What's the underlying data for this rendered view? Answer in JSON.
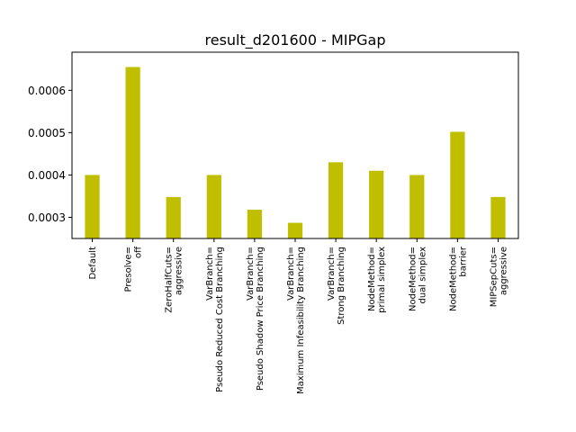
{
  "chart_data": {
    "type": "bar",
    "title": "result_d201600 - MIPGap",
    "xlabel": "",
    "ylabel": "",
    "bar_color": "#bfbf00",
    "ylim": [
      0.00025,
      0.00069
    ],
    "yticks": [
      0.0003,
      0.0004,
      0.0005,
      0.0006
    ],
    "ytick_labels": [
      "0.0003",
      "0.0004",
      "0.0005",
      "0.0006"
    ],
    "grid": false,
    "categories": [
      [
        "Default"
      ],
      [
        "Presolve=",
        "off"
      ],
      [
        "ZeroHalfCuts=",
        "aggressive"
      ],
      [
        "VarBranch=",
        "Pseudo Reduced Cost Branching"
      ],
      [
        "VarBranch=",
        "Pseudo Shadow Price Branching"
      ],
      [
        "VarBranch=",
        "Maximum Infeasibility Branching"
      ],
      [
        "VarBranch=",
        "Strong Branching"
      ],
      [
        "NodeMethod=",
        "primal simplex"
      ],
      [
        "NodeMethod=",
        "dual simplex"
      ],
      [
        "NodeMethod=",
        "barrier"
      ],
      [
        "MIPSepCuts=",
        "aggressive"
      ]
    ],
    "values": [
      0.0004,
      0.000655,
      0.000348,
      0.0004,
      0.000318,
      0.000287,
      0.00043,
      0.00041,
      0.0004,
      0.000502,
      0.000348
    ]
  }
}
